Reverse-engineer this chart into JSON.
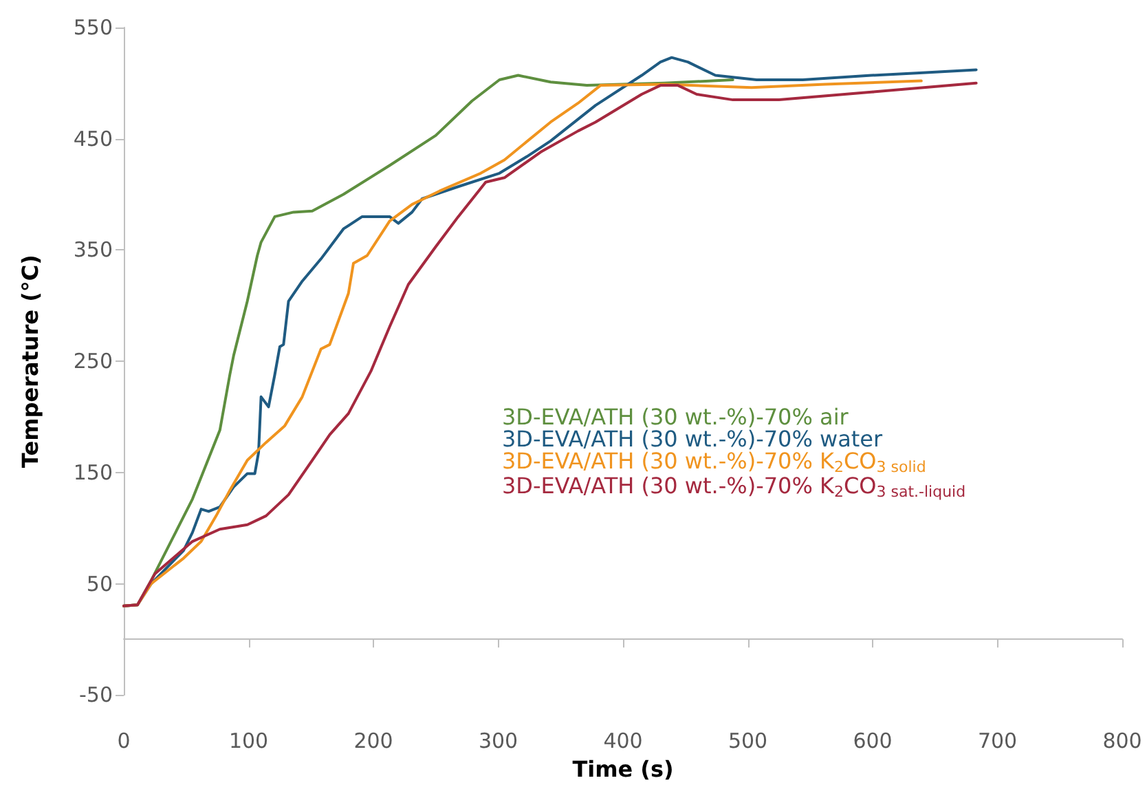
{
  "chart_data": {
    "type": "line",
    "xlabel": "Time (s)",
    "ylabel": "Temperature (°C)",
    "xlim": [
      0,
      800
    ],
    "xticks": [
      0,
      100,
      200,
      300,
      400,
      500,
      600,
      700,
      800
    ],
    "ylim": [
      -50,
      550
    ],
    "yticks": [
      -50,
      50,
      150,
      250,
      350,
      450,
      550
    ],
    "grid": false,
    "legend": "right",
    "marker": "none",
    "line_style": "solid",
    "series": [
      {
        "name": "3D-EVA/ATH (30 wt.-%)-70% air",
        "color": "#5e8f3f",
        "x": [
          0,
          11,
          22,
          55,
          77,
          85,
          88,
          99,
          107,
          110,
          121,
          136,
          151,
          176,
          213,
          250,
          279,
          301,
          316,
          342,
          371,
          433,
          488
        ],
        "values": [
          30,
          31,
          53,
          126,
          188,
          238,
          255,
          304,
          345,
          357,
          380,
          384,
          385,
          400,
          426,
          453,
          484,
          503,
          507,
          501,
          498,
          500,
          503
        ]
      },
      {
        "name": "3D-EVA/ATH (30 wt.-%)-70% water",
        "color": "#1f5b82",
        "x": [
          0,
          11,
          22,
          48,
          55,
          62,
          68,
          77,
          88,
          99,
          105,
          108,
          110,
          116,
          121,
          125,
          128,
          132,
          143,
          158,
          176,
          191,
          213,
          220,
          231,
          239,
          268,
          301,
          323,
          342,
          378,
          415,
          430,
          439,
          452,
          474,
          507,
          544,
          599,
          635,
          683
        ],
        "values": [
          30,
          31,
          50,
          80,
          96,
          117,
          115,
          119,
          137,
          149,
          149,
          168,
          218,
          209,
          238,
          263,
          265,
          304,
          322,
          342,
          369,
          380,
          380,
          374,
          384,
          396,
          407,
          419,
          434,
          448,
          480,
          507,
          519,
          523,
          519,
          507,
          503,
          503,
          507,
          509,
          512
        ]
      },
      {
        "name": "3D-EVA/ATH (30 wt.-%)-70% K$_{2}$CO$_{3 solid}$",
        "color": "#f0941f",
        "x": [
          0,
          11,
          22,
          48,
          62,
          74,
          85,
          99,
          114,
          129,
          143,
          158,
          165,
          180,
          184,
          195,
          213,
          231,
          253,
          286,
          305,
          342,
          364,
          382,
          433,
          503,
          562,
          639
        ],
        "values": [
          30,
          31,
          50,
          73,
          88,
          111,
          134,
          161,
          177,
          192,
          218,
          261,
          265,
          311,
          338,
          345,
          376,
          391,
          403,
          419,
          431,
          465,
          482,
          498,
          499,
          496,
          499,
          502
        ]
      },
      {
        "name": "3D-EVA/ATH (30 wt.-%)-70% K$_{2}$CO$_{3 sat.-liquid}$",
        "color": "#a5293f",
        "x": [
          0,
          11,
          25,
          55,
          77,
          99,
          114,
          132,
          151,
          165,
          180,
          198,
          213,
          228,
          250,
          268,
          290,
          305,
          334,
          364,
          378,
          415,
          430,
          444,
          459,
          488,
          525,
          599,
          683
        ],
        "values": [
          30,
          31,
          59,
          88,
          99,
          103,
          111,
          130,
          161,
          184,
          203,
          241,
          281,
          319,
          353,
          380,
          411,
          415,
          438,
          457,
          465,
          490,
          498,
          498,
          490,
          485,
          485,
          492,
          500
        ]
      }
    ]
  }
}
